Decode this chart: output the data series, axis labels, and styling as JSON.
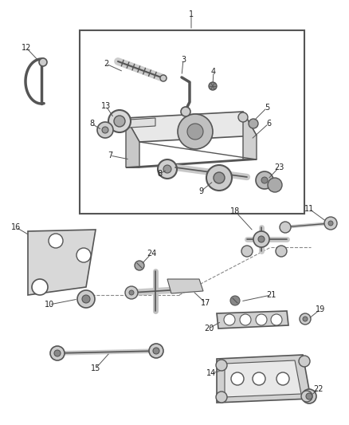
{
  "bg_color": "#ffffff",
  "lc": "#555555",
  "label_color": "#222222",
  "fig_width": 4.38,
  "fig_height": 5.33,
  "dpi": 100
}
